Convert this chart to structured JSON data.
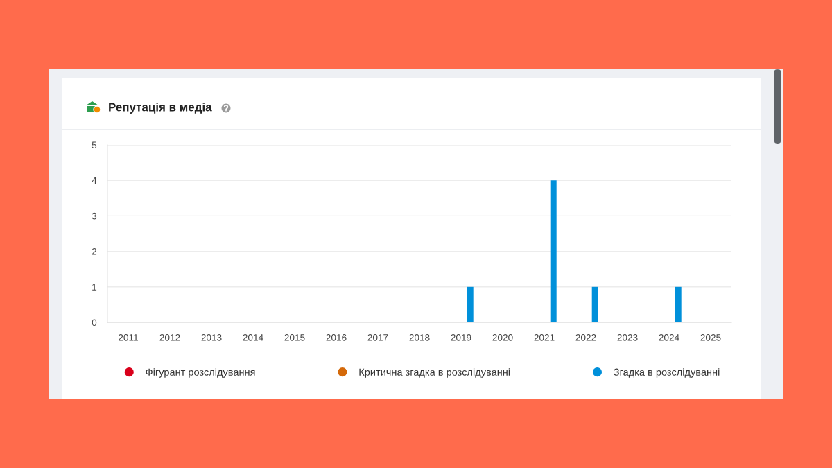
{
  "chart_data": {
    "type": "bar",
    "title": "Репутація в медіа",
    "categories": [
      "2011",
      "2012",
      "2013",
      "2014",
      "2015",
      "2016",
      "2017",
      "2018",
      "2019",
      "2020",
      "2021",
      "2022",
      "2023",
      "2024",
      "2025"
    ],
    "series": [
      {
        "name": "Фігурант розслідування",
        "color": "#d9001b",
        "values": [
          0,
          0,
          0,
          0,
          0,
          0,
          0,
          0,
          0,
          0,
          0,
          0,
          0,
          0,
          0
        ]
      },
      {
        "name": "Критична згадка в розслідуванні",
        "color": "#d4690a",
        "values": [
          0,
          0,
          0,
          0,
          0,
          0,
          0,
          0,
          0,
          0,
          0,
          0,
          0,
          0,
          0
        ]
      },
      {
        "name": "Згадка в розслідуванні",
        "color": "#0090da",
        "values": [
          0,
          0,
          0,
          0,
          0,
          0,
          0,
          0,
          1,
          0,
          4,
          1,
          0,
          1,
          0
        ]
      }
    ],
    "ylim": [
      0,
      5
    ],
    "yticks": [
      0,
      1,
      2,
      3,
      4,
      5
    ],
    "grid": "y",
    "legend": "bottom"
  }
}
